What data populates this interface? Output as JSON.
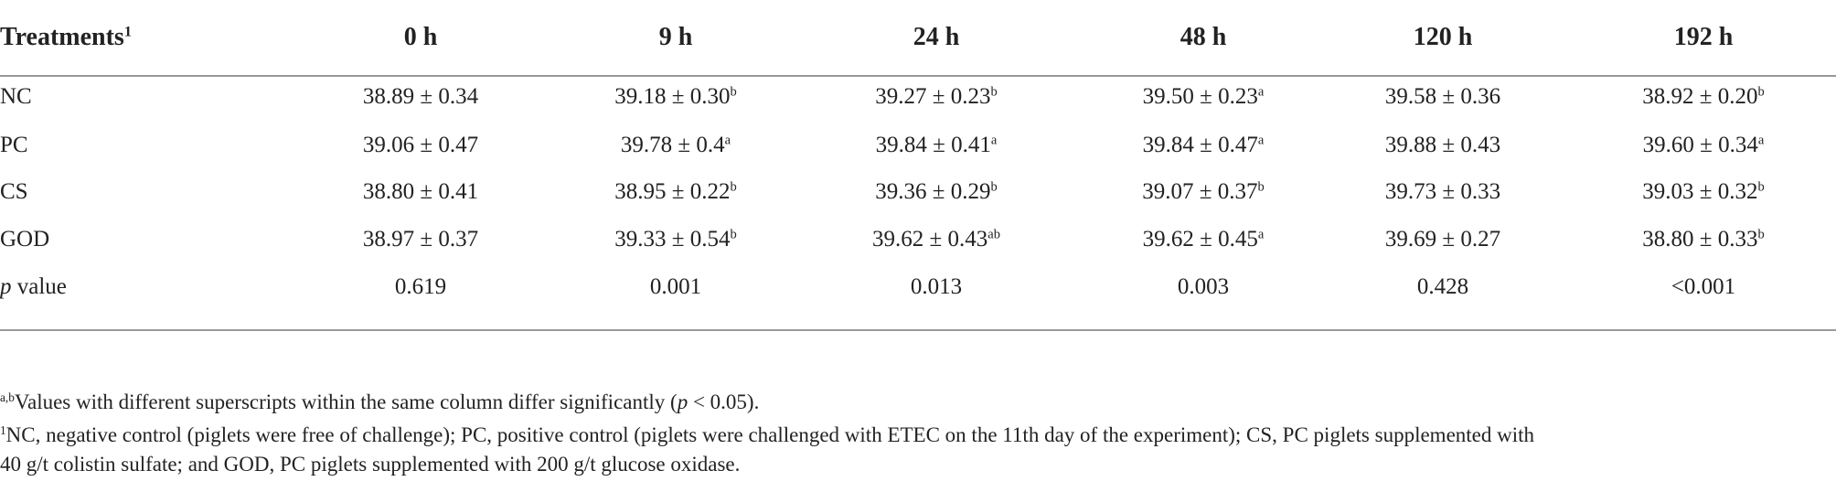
{
  "table": {
    "header": [
      [
        {
          "text": "Treatments"
        },
        {
          "sup": "1"
        }
      ],
      [
        {
          "text": "0 h"
        }
      ],
      [
        {
          "text": "9 h"
        }
      ],
      [
        {
          "text": "24 h"
        }
      ],
      [
        {
          "text": "48 h"
        }
      ],
      [
        {
          "text": "120 h"
        }
      ],
      [
        {
          "text": "192 h"
        }
      ]
    ],
    "rows": [
      [
        [
          {
            "text": "NC"
          }
        ],
        [
          {
            "text": "38.89 ± 0.34"
          }
        ],
        [
          {
            "text": "39.18 ± 0.30"
          },
          {
            "sup": "b"
          }
        ],
        [
          {
            "text": "39.27 ± 0.23"
          },
          {
            "sup": "b"
          }
        ],
        [
          {
            "text": "39.50 ± 0.23"
          },
          {
            "sup": "a"
          }
        ],
        [
          {
            "text": "39.58 ± 0.36"
          }
        ],
        [
          {
            "text": "38.92 ± 0.20"
          },
          {
            "sup": "b"
          }
        ]
      ],
      [
        [
          {
            "text": "PC"
          }
        ],
        [
          {
            "text": "39.06 ± 0.47"
          }
        ],
        [
          {
            "text": "39.78 ± 0.4"
          },
          {
            "sup": "a"
          }
        ],
        [
          {
            "text": "39.84 ± 0.41"
          },
          {
            "sup": "a"
          }
        ],
        [
          {
            "text": "39.84 ± 0.47"
          },
          {
            "sup": "a"
          }
        ],
        [
          {
            "text": "39.88 ± 0.43"
          }
        ],
        [
          {
            "text": "39.60 ± 0.34"
          },
          {
            "sup": "a"
          }
        ]
      ],
      [
        [
          {
            "text": "CS"
          }
        ],
        [
          {
            "text": "38.80 ± 0.41"
          }
        ],
        [
          {
            "text": "38.95 ± 0.22"
          },
          {
            "sup": "b"
          }
        ],
        [
          {
            "text": "39.36 ± 0.29"
          },
          {
            "sup": "b"
          }
        ],
        [
          {
            "text": "39.07 ± 0.37"
          },
          {
            "sup": "b"
          }
        ],
        [
          {
            "text": "39.73 ± 0.33"
          }
        ],
        [
          {
            "text": "39.03 ± 0.32"
          },
          {
            "sup": "b"
          }
        ]
      ],
      [
        [
          {
            "text": "GOD"
          }
        ],
        [
          {
            "text": "38.97 ± 0.37"
          }
        ],
        [
          {
            "text": "39.33 ± 0.54"
          },
          {
            "sup": "b"
          }
        ],
        [
          {
            "text": "39.62 ± 0.43"
          },
          {
            "sup": "ab"
          }
        ],
        [
          {
            "text": "39.62 ± 0.45"
          },
          {
            "sup": "a"
          }
        ],
        [
          {
            "text": "39.69 ± 0.27"
          }
        ],
        [
          {
            "text": "38.80 ± 0.33"
          },
          {
            "sup": "b"
          }
        ]
      ],
      [
        [
          {
            "italic": "p"
          },
          {
            "text": " value"
          }
        ],
        [
          {
            "text": "0.619"
          }
        ],
        [
          {
            "text": "0.001"
          }
        ],
        [
          {
            "text": "0.013"
          }
        ],
        [
          {
            "text": "0.003"
          }
        ],
        [
          {
            "text": "0.428"
          }
        ],
        [
          {
            "text": "<0.001"
          }
        ]
      ]
    ],
    "footnotes": [
      [
        {
          "sup": "a,b"
        },
        {
          "text": "Values with different superscripts within the same column differ significantly ("
        },
        {
          "italic": "p"
        },
        {
          "text": " < 0.05)."
        }
      ],
      [
        {
          "sup": "1"
        },
        {
          "text": "NC, negative control (piglets were free of challenge); PC, positive control (piglets were challenged with ETEC on the 11th day of the experiment); CS, PC piglets supplemented with"
        }
      ],
      [
        {
          "text": "40 g/t colistin sulfate; and GOD, PC piglets supplemented with 200 g/t glucose oxidase."
        }
      ]
    ]
  }
}
